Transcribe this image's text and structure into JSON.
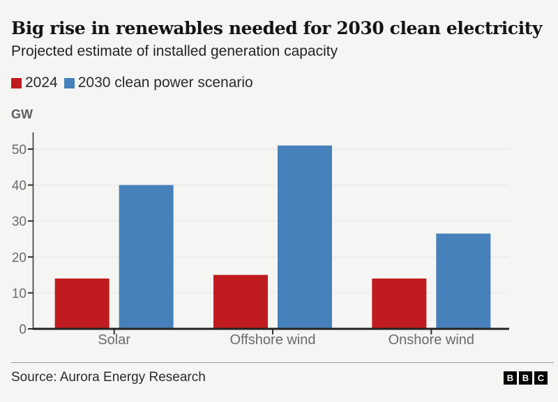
{
  "chart_data": {
    "type": "bar",
    "title": "Big rise in renewables needed for 2030 clean electricity",
    "subtitle": "Projected estimate of installed generation capacity",
    "ylabel": "GW",
    "categories": [
      "Solar",
      "Offshore wind",
      "Onshore wind"
    ],
    "series": [
      {
        "name": "2024",
        "color": "#c01b1e",
        "values": [
          14,
          15,
          14
        ]
      },
      {
        "name": "2030 clean power scenario",
        "color": "#4681bb",
        "values": [
          40,
          51,
          26.5
        ]
      }
    ],
    "yticks": [
      0,
      10,
      20,
      30,
      40,
      50
    ],
    "ylim": [
      0,
      54
    ],
    "grid": true,
    "legend_position": "top-left"
  },
  "footer": {
    "source": "Source: Aurora Energy Research",
    "logo_letters": [
      "B",
      "B",
      "C"
    ]
  },
  "colors": {
    "background": "#f5f5f3",
    "bar_red": "#c01b1e",
    "bar_blue": "#4681bb",
    "gridline": "#eaeae7",
    "axis": "#2f2f2f",
    "axis_label": "#6a6a6e",
    "title_text": "#141414",
    "body_text": "#232323"
  }
}
